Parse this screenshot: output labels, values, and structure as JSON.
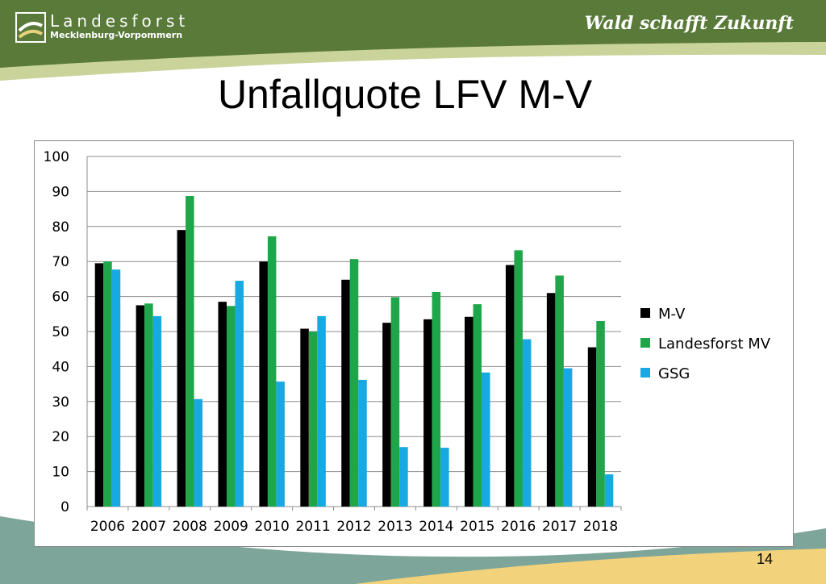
{
  "header": {
    "logo_line1": "Landesforst",
    "logo_line2": "Mecklenburg-Vorpommern",
    "slogan": "Wald schafft Zukunft"
  },
  "title": "Unfallquote LFV M-V",
  "page_number": "14",
  "colors": {
    "header_green": "#5a7a3a",
    "band_light": "#c9d39a",
    "bottom_teal": "#7ea59a",
    "bottom_yellow": "#f2d27a"
  },
  "chart_data": {
    "type": "bar",
    "categories": [
      "2006",
      "2007",
      "2008",
      "2009",
      "2010",
      "2011",
      "2012",
      "2013",
      "2014",
      "2015",
      "2016",
      "2017",
      "2018"
    ],
    "series": [
      {
        "name": "M-V",
        "color": "#000000",
        "values": [
          69.5,
          57.5,
          79,
          58.5,
          70,
          50.8,
          64.8,
          52.5,
          53.5,
          54.2,
          69,
          61,
          45.5
        ]
      },
      {
        "name": "Landesforst MV",
        "color": "#1fa64a",
        "values": [
          70,
          58,
          88.7,
          57.3,
          77.2,
          50,
          70.7,
          59.8,
          61.3,
          57.8,
          73.2,
          66,
          53
        ]
      },
      {
        "name": "GSG",
        "color": "#17a9e1",
        "values": [
          67.7,
          54.4,
          30.7,
          64.5,
          35.7,
          54.4,
          36.2,
          17,
          16.8,
          38.3,
          47.8,
          39.5,
          9.2
        ]
      }
    ],
    "ylim": [
      0,
      100
    ],
    "yticks": [
      0,
      10,
      20,
      30,
      40,
      50,
      60,
      70,
      80,
      90,
      100
    ],
    "grid": true,
    "legend": "right"
  }
}
